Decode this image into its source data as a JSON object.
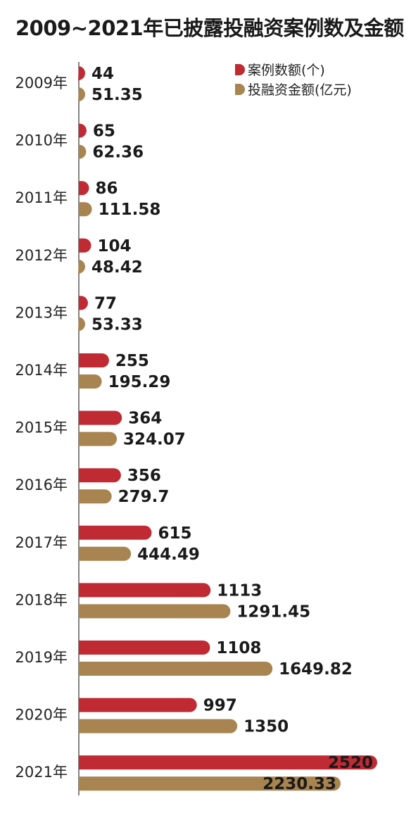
{
  "chart_data": {
    "type": "bar",
    "orientation": "horizontal",
    "title": "2009~2021年已披露投融资案例数及金额",
    "categories": [
      "2009年",
      "2010年",
      "2011年",
      "2012年",
      "2013年",
      "2014年",
      "2015年",
      "2016年",
      "2017年",
      "2018年",
      "2019年",
      "2020年",
      "2021年"
    ],
    "series": [
      {
        "name": "案例数额(个)",
        "color": "#bf2a33",
        "values": [
          44,
          65,
          86,
          104,
          77,
          255,
          364,
          356,
          615,
          1113,
          1108,
          997,
          2520
        ],
        "labels": [
          "44",
          "65",
          "86",
          "104",
          "77",
          "255",
          "364",
          "356",
          "615",
          "1113",
          "1108",
          "997",
          "2520"
        ]
      },
      {
        "name": "投融资金额(亿元)",
        "color": "#a88450",
        "values": [
          51.35,
          62.36,
          111.58,
          48.42,
          53.33,
          195.29,
          324.07,
          279.7,
          444.49,
          1291.45,
          1649.82,
          1350,
          2230.33
        ],
        "labels": [
          "51.35",
          "62.36",
          "111.58",
          "48.42",
          "53.33",
          "195.29",
          "324.07",
          "279.7",
          "444.49",
          "1291.45",
          "1649.82",
          "1350",
          "2230.33"
        ]
      }
    ],
    "legend_position": "top-right",
    "grid": false
  }
}
